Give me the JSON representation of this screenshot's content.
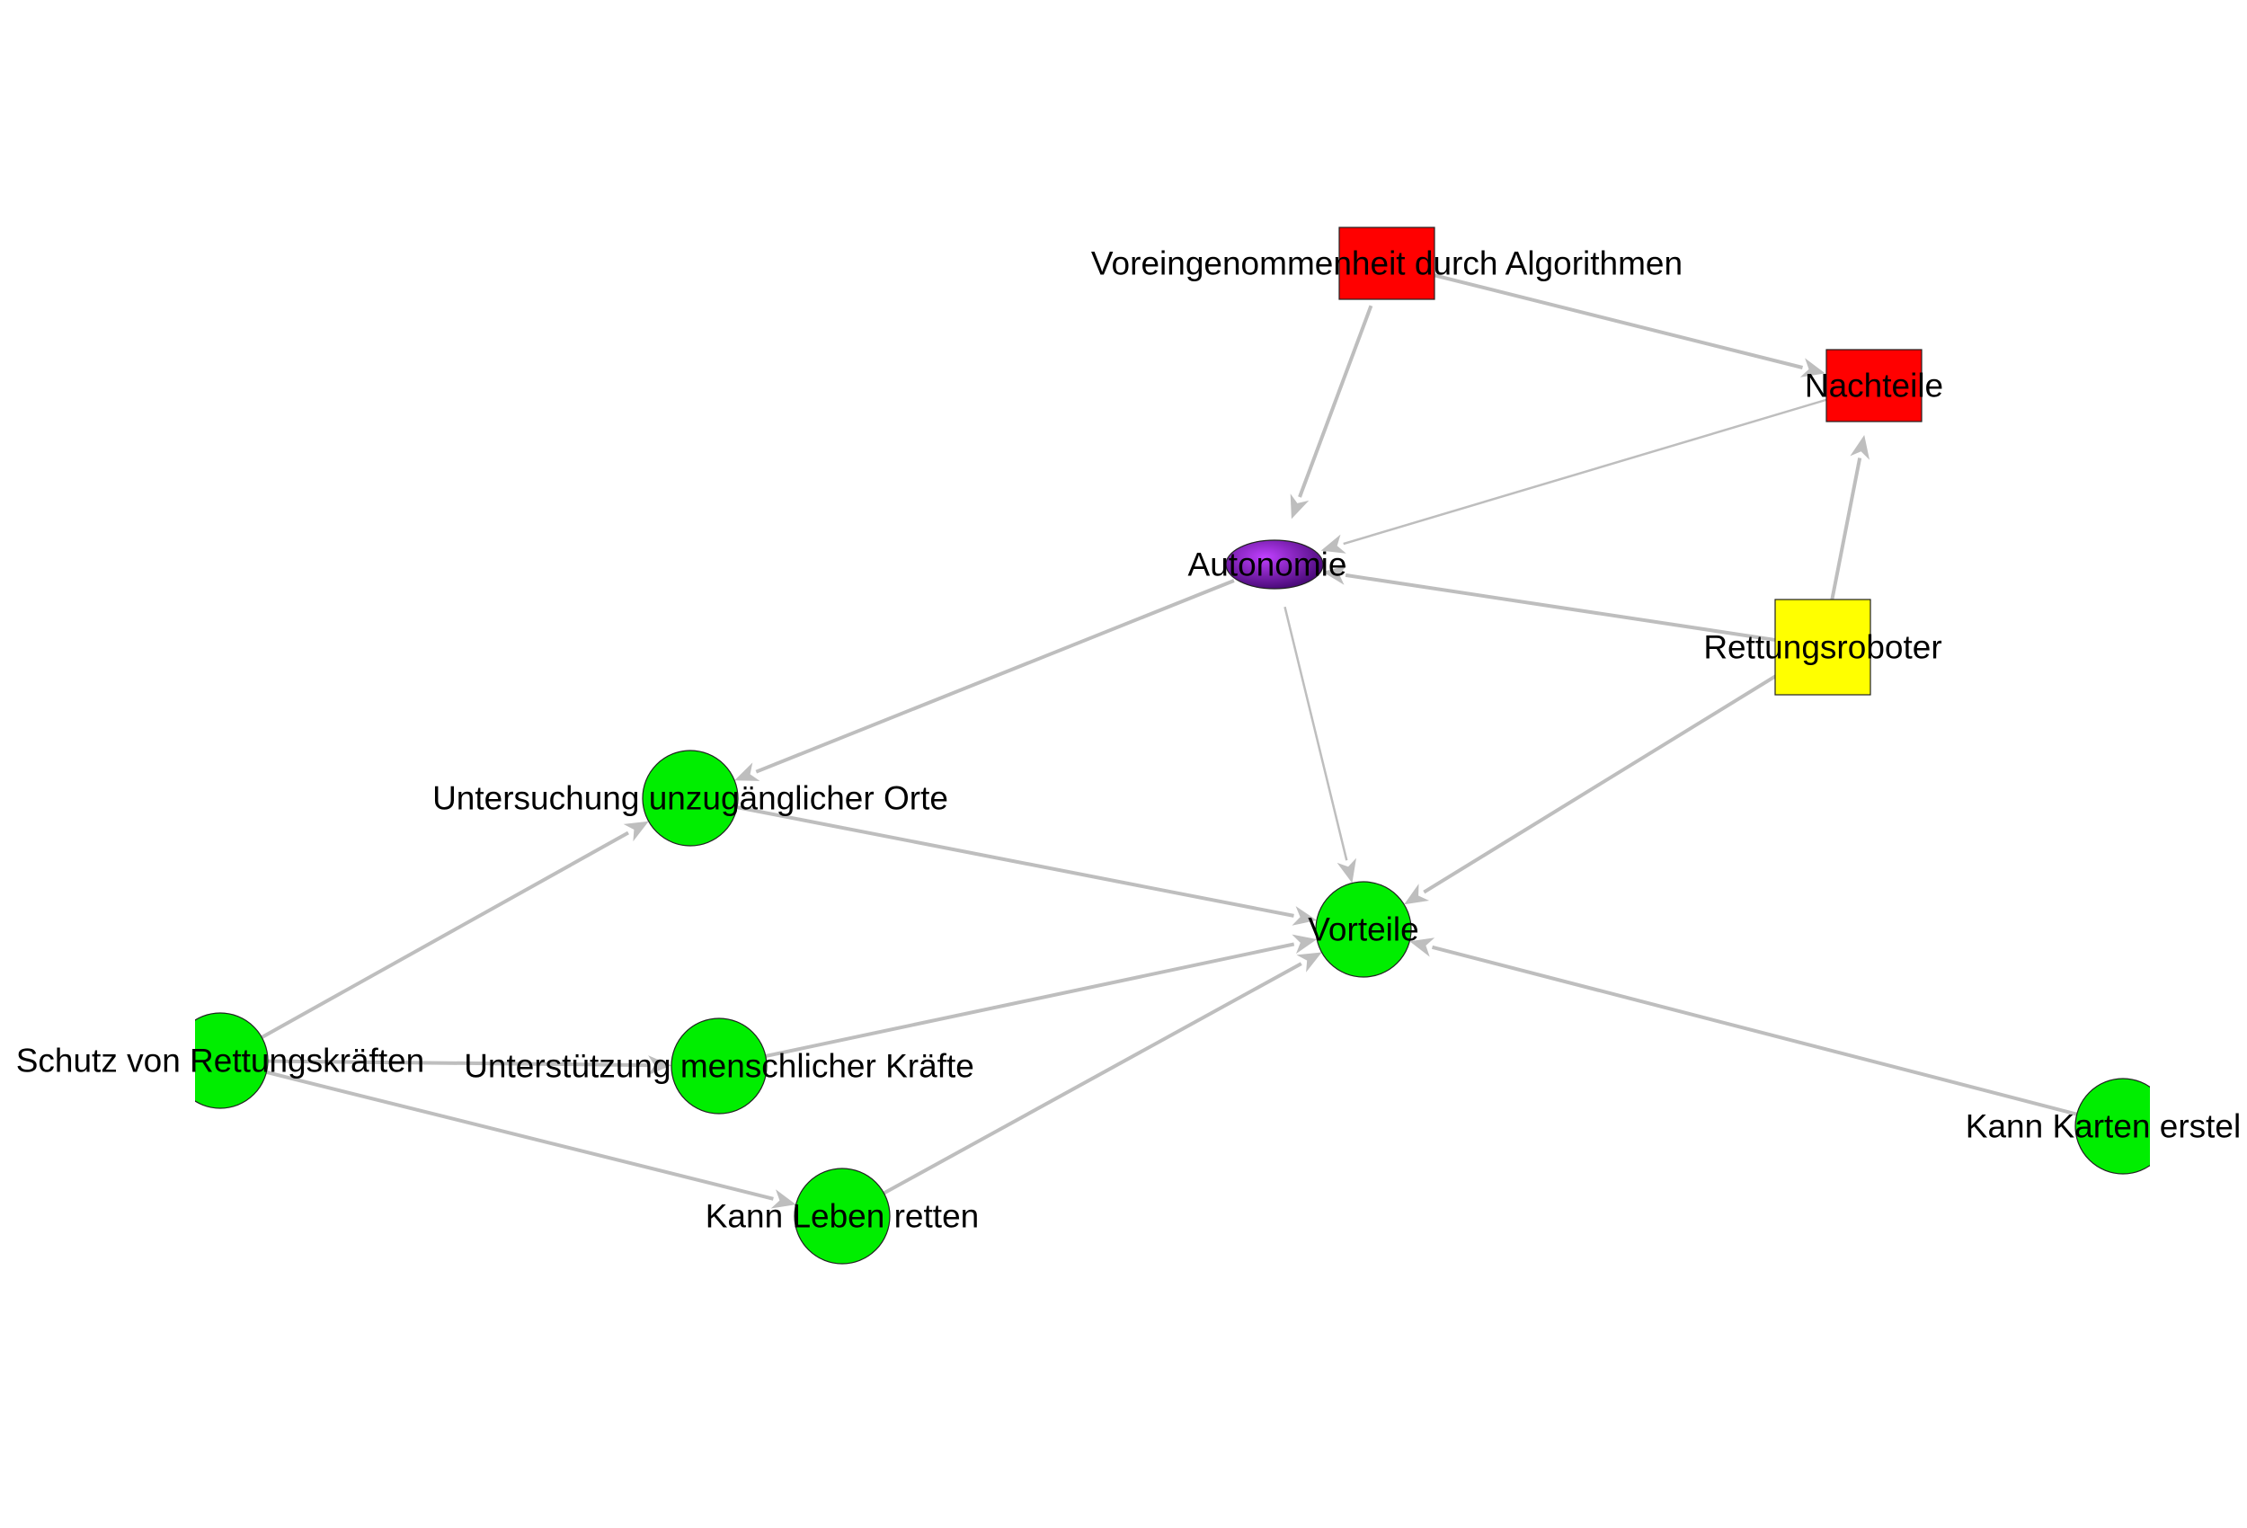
{
  "diagram": {
    "type": "directed-graph",
    "colors": {
      "background": "#ffffff",
      "edge": "#bebebe",
      "node_stroke": "#222222"
    },
    "nodes": [
      {
        "id": "voreingenommenheit",
        "label": "Voreingenommenheit durch Algorithmen",
        "shape": "square",
        "color": "#ff0000"
      },
      {
        "id": "nachteile",
        "label": "Nachteile",
        "shape": "square",
        "color": "#ff0000"
      },
      {
        "id": "autonomie",
        "label": "Autonomie",
        "shape": "ellipse",
        "color": "#6a0dad"
      },
      {
        "id": "rettungsroboter",
        "label": "Rettungsroboter",
        "shape": "square",
        "color": "#ffff00"
      },
      {
        "id": "untersuchung",
        "label": "Untersuchung unzugänglicher Orte",
        "shape": "circle",
        "color": "#00ee00"
      },
      {
        "id": "vorteile",
        "label": "Vorteile",
        "shape": "circle",
        "color": "#00ee00"
      },
      {
        "id": "schutz",
        "label": "Schutz von Rettungskräften",
        "shape": "circle",
        "color": "#00ee00"
      },
      {
        "id": "unterstuetzung",
        "label": "Unterstützung menschlicher Kräfte",
        "shape": "circle",
        "color": "#00ee00"
      },
      {
        "id": "leben",
        "label": "Kann Leben retten",
        "shape": "circle",
        "color": "#00ee00"
      },
      {
        "id": "karten",
        "label": "Kann Karten erstel",
        "shape": "circle",
        "color": "#00ee00"
      }
    ],
    "edges": [
      {
        "from": "voreingenommenheit",
        "to": "nachteile"
      },
      {
        "from": "voreingenommenheit",
        "to": "autonomie"
      },
      {
        "from": "nachteile",
        "to": "autonomie"
      },
      {
        "from": "rettungsroboter",
        "to": "nachteile"
      },
      {
        "from": "rettungsroboter",
        "to": "autonomie"
      },
      {
        "from": "rettungsroboter",
        "to": "vorteile"
      },
      {
        "from": "autonomie",
        "to": "untersuchung"
      },
      {
        "from": "autonomie",
        "to": "vorteile"
      },
      {
        "from": "untersuchung",
        "to": "vorteile"
      },
      {
        "from": "schutz",
        "to": "untersuchung"
      },
      {
        "from": "schutz",
        "to": "unterstuetzung"
      },
      {
        "from": "schutz",
        "to": "leben"
      },
      {
        "from": "unterstuetzung",
        "to": "vorteile"
      },
      {
        "from": "leben",
        "to": "vorteile"
      },
      {
        "from": "karten",
        "to": "vorteile"
      }
    ]
  }
}
